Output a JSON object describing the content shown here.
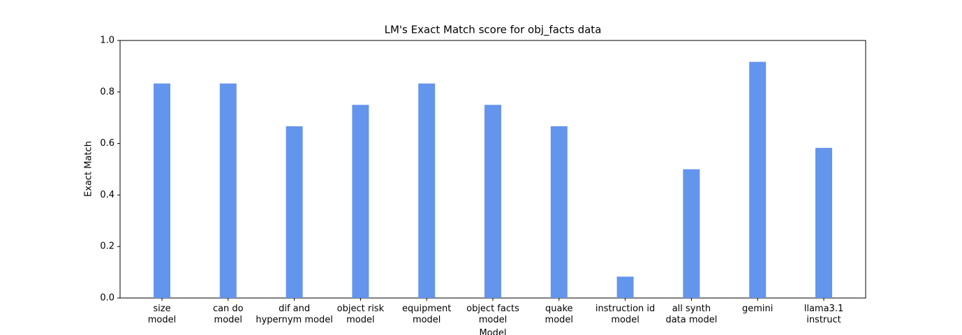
{
  "chart_data": {
    "type": "bar",
    "title": "LM's Exact Match score for obj_facts data",
    "x_label": "Model",
    "y_label": "Exact Match",
    "categories": [
      "size\nmodel",
      "can do\nmodel",
      "dif and\nhypernym model",
      "object risk\nmodel",
      "equipment\nmodel",
      "object facts\nmodel",
      "quake\nmodel",
      "instruction id\nmodel",
      "all synth\ndata model",
      "gemini",
      "llama3.1\ninstruct"
    ],
    "values": [
      0.833,
      0.833,
      0.667,
      0.75,
      0.833,
      0.75,
      0.667,
      0.083,
      0.5,
      0.917,
      0.583
    ],
    "color": "#6495ed",
    "ylim": [
      0,
      1
    ],
    "yticks": [
      {
        "value": 0,
        "label": "0.0"
      },
      {
        "value": 0.2,
        "label": "0.2"
      },
      {
        "value": 0.4,
        "label": "0.4"
      },
      {
        "value": 0.6,
        "label": "0.6"
      },
      {
        "value": 0.8,
        "label": "0.8"
      },
      {
        "value": 1,
        "label": "1.0"
      }
    ],
    "grid": false
  }
}
